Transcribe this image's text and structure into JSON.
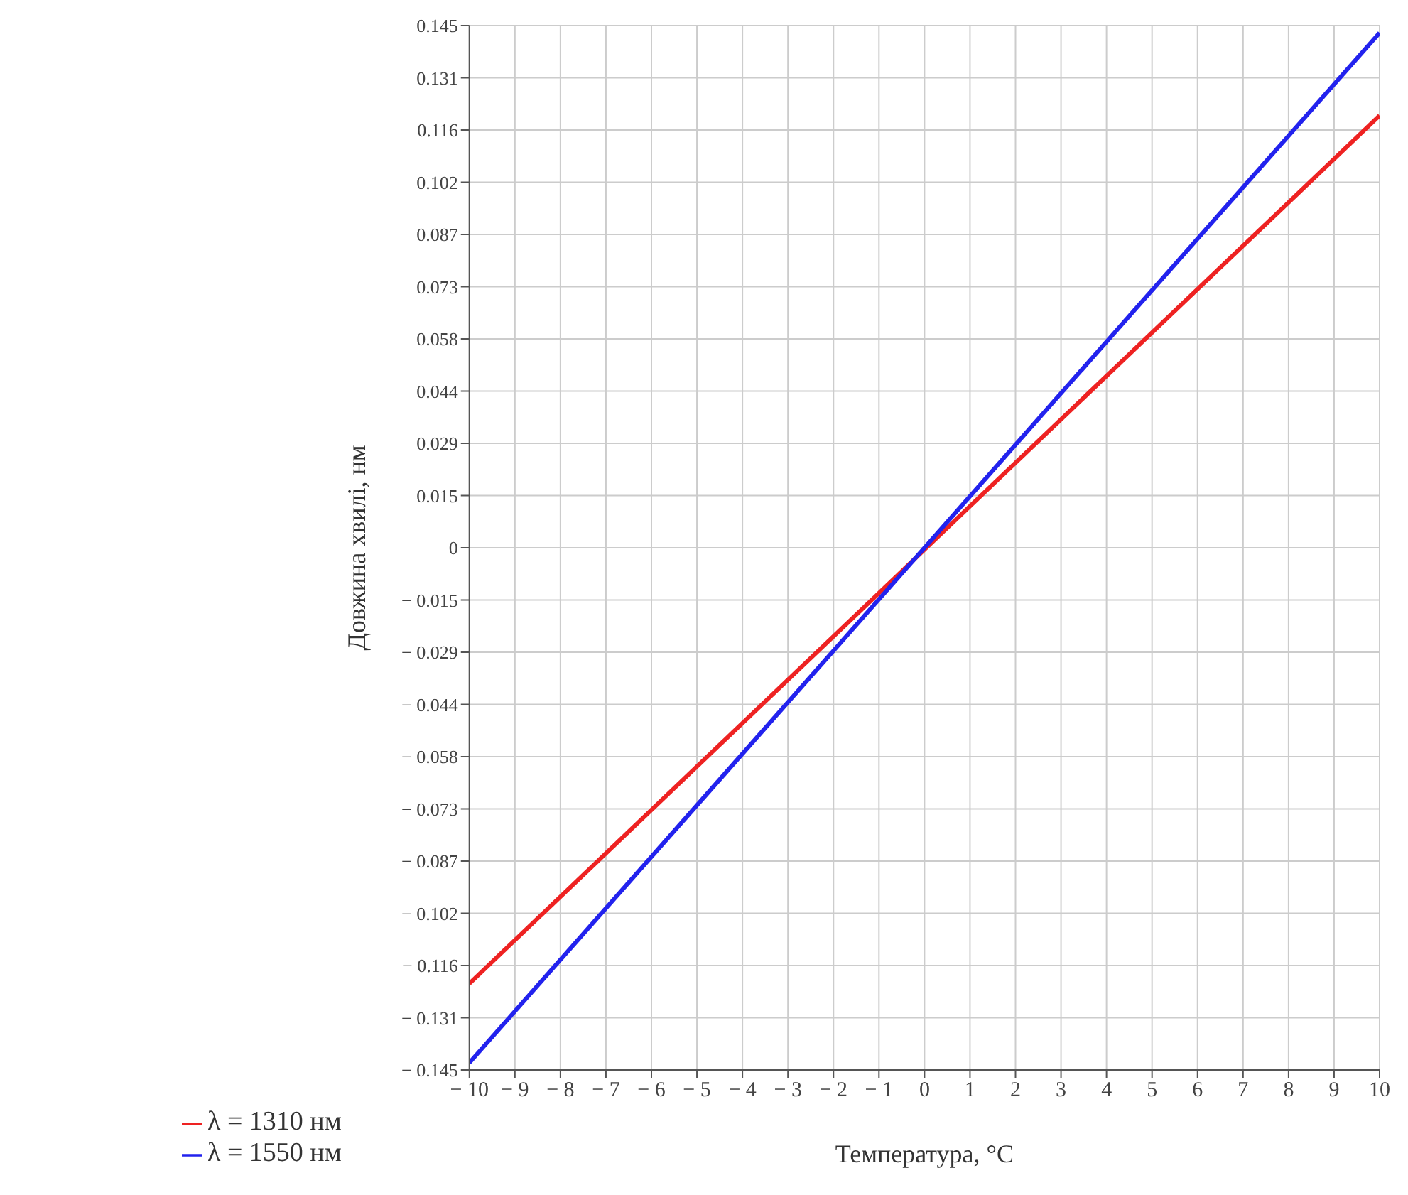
{
  "chart_data": {
    "type": "line",
    "xlabel": "Температура, °C",
    "ylabel": "Довжина хвилі, нм",
    "x": [
      -10,
      10
    ],
    "series": [
      {
        "name": "λ = 1310 нм",
        "color": "#ee2222",
        "values": [
          -0.121,
          0.12
        ]
      },
      {
        "name": "λ = 1550 нм",
        "color": "#2222ee",
        "values": [
          -0.143,
          0.143
        ]
      }
    ],
    "xlim": [
      -10,
      10
    ],
    "xticks": [
      {
        "value": -10,
        "label": "− 10"
      },
      {
        "value": -9,
        "label": "− 9"
      },
      {
        "value": -8,
        "label": "− 8"
      },
      {
        "value": -7,
        "label": "− 7"
      },
      {
        "value": -6,
        "label": "− 6"
      },
      {
        "value": -5,
        "label": "− 5"
      },
      {
        "value": -4,
        "label": "− 4"
      },
      {
        "value": -3,
        "label": "− 3"
      },
      {
        "value": -2,
        "label": "− 2"
      },
      {
        "value": -1,
        "label": "− 1"
      },
      0,
      1,
      2,
      3,
      4,
      5,
      6,
      7,
      8,
      9,
      10
    ],
    "ylim": [
      -0.145,
      0.145
    ],
    "yticks": [
      {
        "value": -0.145,
        "label": "− 0.145"
      },
      {
        "value": -0.1305,
        "label": "− 0.131"
      },
      {
        "value": -0.116,
        "label": "− 0.116"
      },
      {
        "value": -0.1015,
        "label": "− 0.102"
      },
      {
        "value": -0.087,
        "label": "− 0.087"
      },
      {
        "value": -0.0725,
        "label": "− 0.073"
      },
      {
        "value": -0.058,
        "label": "− 0.058"
      },
      {
        "value": -0.0435,
        "label": "− 0.044"
      },
      {
        "value": -0.029,
        "label": "− 0.029"
      },
      {
        "value": -0.0145,
        "label": "− 0.015"
      },
      0,
      {
        "value": 0.0145,
        "label": "0.015"
      },
      0.029,
      {
        "value": 0.0435,
        "label": "0.044"
      },
      0.058,
      {
        "value": 0.0725,
        "label": "0.073"
      },
      0.087,
      {
        "value": 0.1015,
        "label": "0.102"
      },
      0.116,
      {
        "value": 0.1305,
        "label": "0.131"
      },
      0.145
    ],
    "grid": true,
    "legend": "bottom left",
    "line_style": "solid",
    "marker": "none"
  }
}
